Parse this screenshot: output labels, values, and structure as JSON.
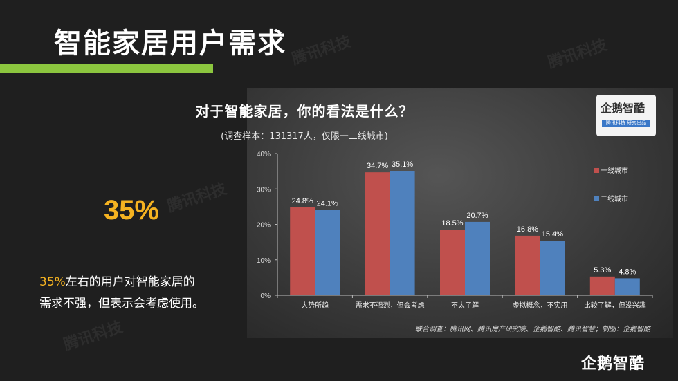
{
  "slide": {
    "title": "智能家居用户需求",
    "big_percent": "35%",
    "desc_highlight": "35%",
    "desc_line1_rest": "左右的用户对智能家居的",
    "desc_line2": "需求不强，但表示会考虑使用。",
    "watermark_text": "腾讯科技",
    "brand": "企鹅智酷",
    "accent_bar_color": "#8cc63f",
    "highlight_color": "#f5b321"
  },
  "logo": {
    "main": "企鹅智酷",
    "sub": "腾讯科技 研究出品"
  },
  "footer_note": "联合调查：腾讯网、腾讯房产研究院、企鹅智酷、腾讯智慧；制图：企鹅智酷",
  "chart_data": {
    "type": "bar",
    "title": "对于智能家居，你的看法是什么？",
    "subtitle": "(调查样本：131317人，仅限一二线城市)",
    "categories": [
      "大势所趋",
      "需求不强烈，但会考虑",
      "不太了解",
      "虚拟概念，不实用",
      "比较了解，但没兴趣"
    ],
    "series": [
      {
        "name": "一线城市",
        "color": "#c0504d",
        "values": [
          24.8,
          34.7,
          18.5,
          16.8,
          5.3
        ]
      },
      {
        "name": "二线城市",
        "color": "#4f81bd",
        "values": [
          24.1,
          35.1,
          20.7,
          15.4,
          4.8
        ]
      }
    ],
    "value_labels": [
      [
        "24.8%",
        "34.7%",
        "18.5%",
        "16.8%",
        "5.3%"
      ],
      [
        "24.1%",
        "35.1%",
        "20.7%",
        "15.4%",
        "4.8%"
      ]
    ],
    "ylim": [
      0,
      40
    ],
    "yticks": [
      0,
      10,
      20,
      30,
      40
    ],
    "ytick_labels": [
      "0%",
      "10%",
      "20%",
      "30%",
      "40%"
    ],
    "legend_position": "right",
    "grid": false
  }
}
